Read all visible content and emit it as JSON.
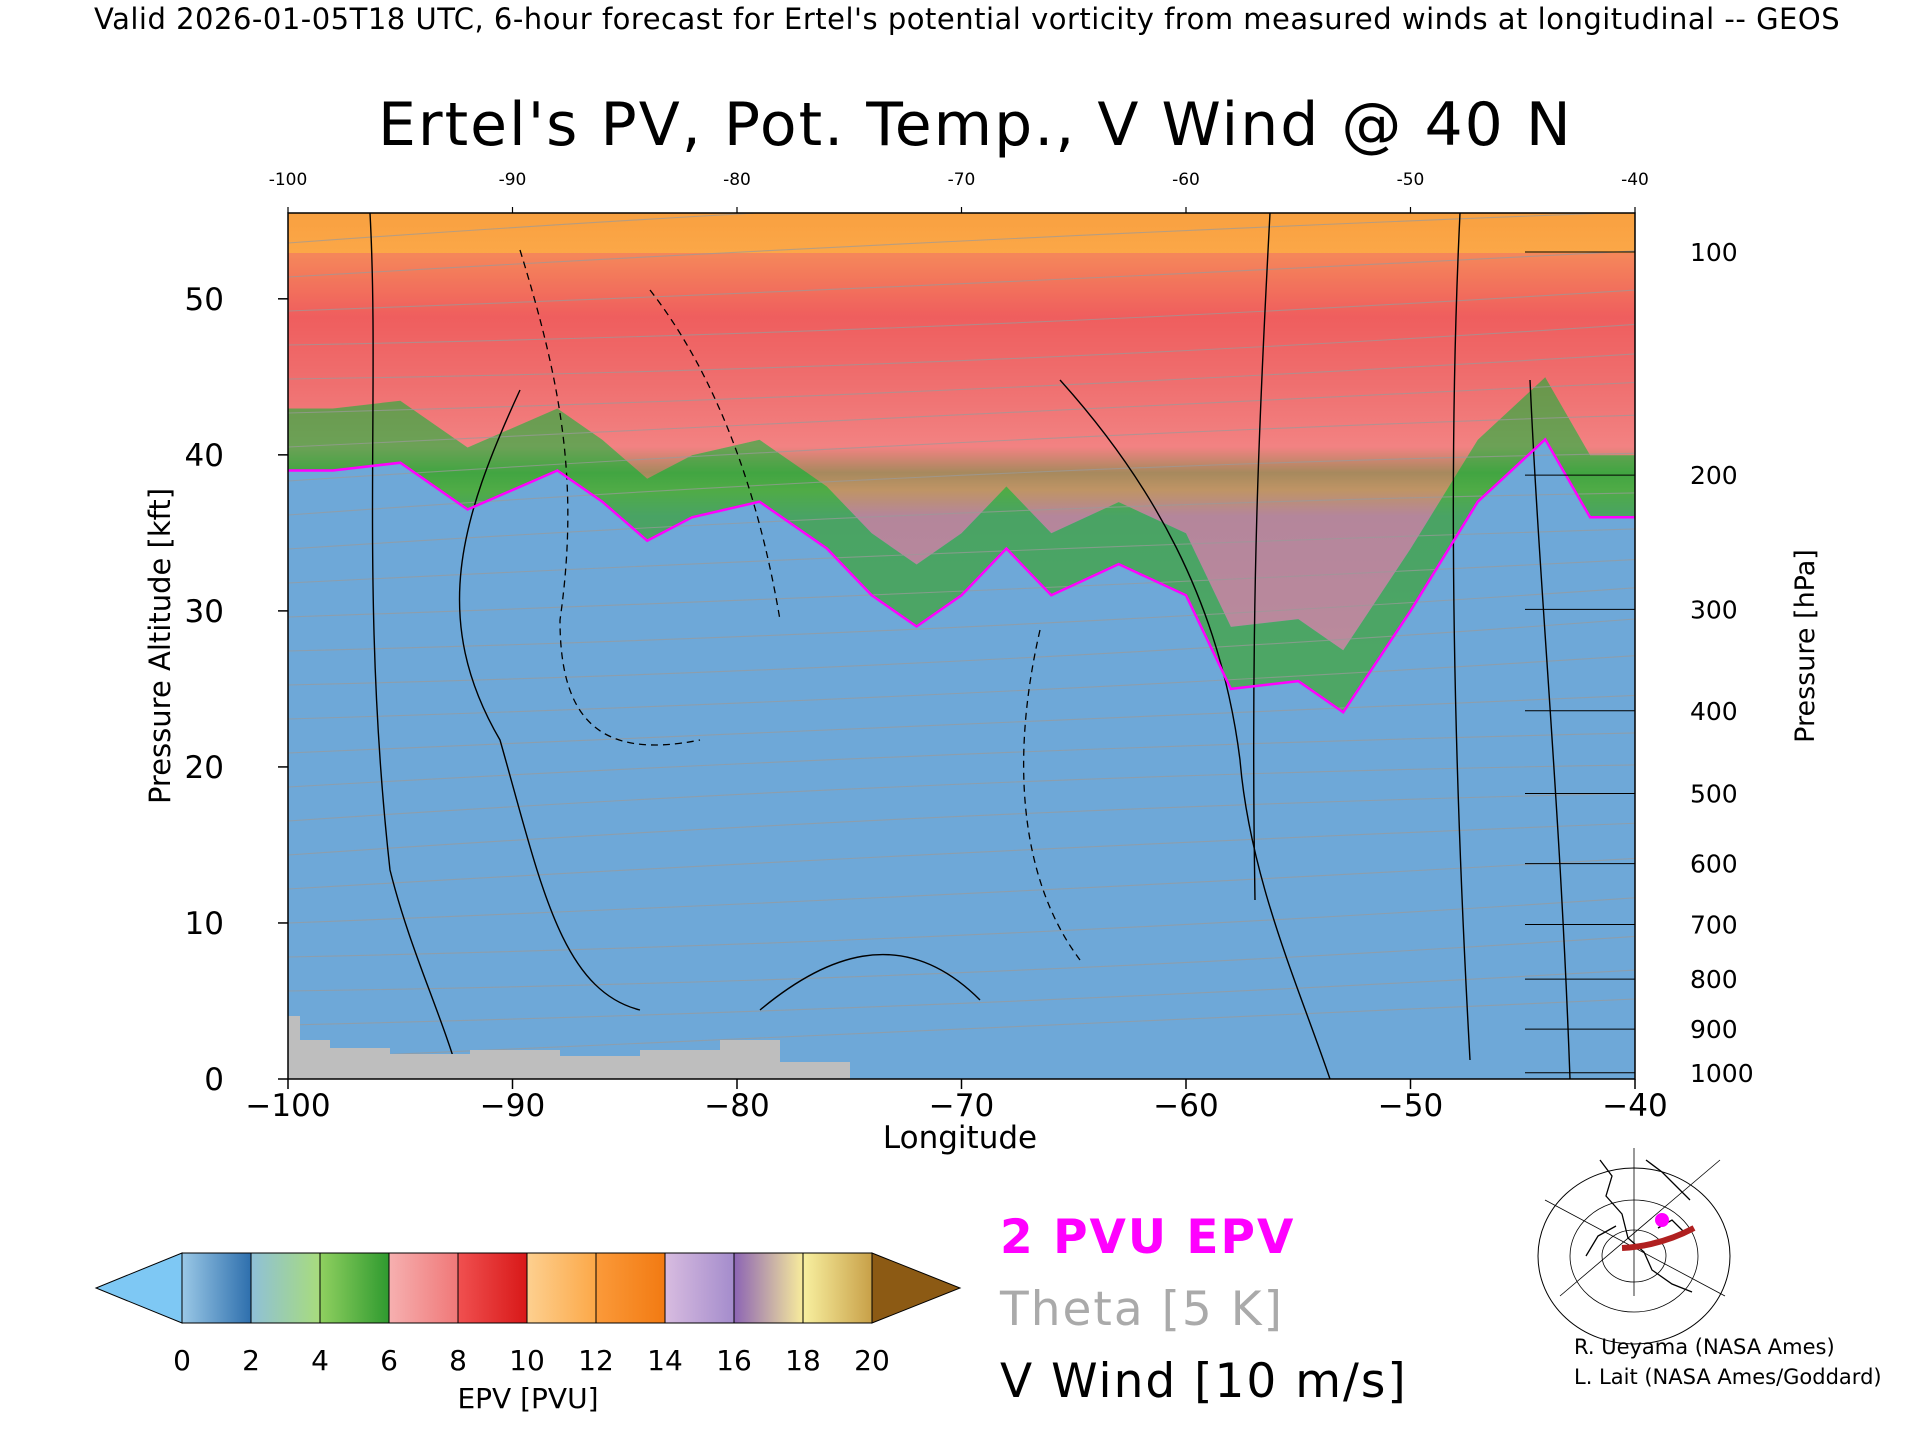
{
  "header": {
    "valid_line": "Valid 2026-01-05T18 UTC, 6-hour forecast for Ertel's potential vorticity from measured winds at longitudinal -- GEOS"
  },
  "chart_data": {
    "type": "heatmap",
    "title": "Ertel's PV, Pot. Temp., V Wind @ 40 N",
    "xlabel": "Longitude",
    "ylabel_left": "Pressure Altitude [kft]",
    "ylabel_right": "Pressure [hPa]",
    "xlim": [
      -100,
      -40
    ],
    "ylim": [
      0,
      55.5
    ],
    "x_ticks": [
      -100,
      -90,
      -80,
      -70,
      -60,
      -50,
      -40
    ],
    "x_tick_labels": [
      "−100",
      "−90",
      "−80",
      "−70",
      "−60",
      "−50",
      "−40"
    ],
    "top_ticks": [
      "-100",
      "-90",
      "-80",
      "-70",
      "-60",
      "-50",
      "-40"
    ],
    "y_ticks": [
      0,
      10,
      20,
      30,
      40,
      50
    ],
    "pressure_ticks": [
      {
        "hPa": "100",
        "kft": 53.0
      },
      {
        "hPa": "200",
        "kft": 38.7
      },
      {
        "hPa": "300",
        "kft": 30.1
      },
      {
        "hPa": "400",
        "kft": 23.6
      },
      {
        "hPa": "500",
        "kft": 18.3
      },
      {
        "hPa": "600",
        "kft": 13.8
      },
      {
        "hPa": "700",
        "kft": 9.9
      },
      {
        "hPa": "800",
        "kft": 6.4
      },
      {
        "hPa": "900",
        "kft": 3.2
      },
      {
        "hPa": "1000",
        "kft": 0.4
      }
    ],
    "tropopause_2pvu_kft": [
      {
        "lon": -100,
        "kft": 39
      },
      {
        "lon": -98,
        "kft": 39
      },
      {
        "lon": -95,
        "kft": 39.5
      },
      {
        "lon": -92,
        "kft": 36.5
      },
      {
        "lon": -88,
        "kft": 39
      },
      {
        "lon": -86,
        "kft": 37
      },
      {
        "lon": -84,
        "kft": 34.5
      },
      {
        "lon": -82,
        "kft": 36
      },
      {
        "lon": -79,
        "kft": 37
      },
      {
        "lon": -76,
        "kft": 34
      },
      {
        "lon": -74,
        "kft": 31
      },
      {
        "lon": -72,
        "kft": 29
      },
      {
        "lon": -70,
        "kft": 31
      },
      {
        "lon": -68,
        "kft": 34
      },
      {
        "lon": -66,
        "kft": 31
      },
      {
        "lon": -63,
        "kft": 33
      },
      {
        "lon": -60,
        "kft": 31
      },
      {
        "lon": -58,
        "kft": 25
      },
      {
        "lon": -55,
        "kft": 25.5
      },
      {
        "lon": -53,
        "kft": 23.5
      },
      {
        "lon": -50,
        "kft": 30
      },
      {
        "lon": -47,
        "kft": 37
      },
      {
        "lon": -44,
        "kft": 41
      },
      {
        "lon": -42,
        "kft": 36
      },
      {
        "lon": -40,
        "kft": 36
      }
    ],
    "colorbar": {
      "label": "EPV [PVU]",
      "ticks": [
        "0",
        "2",
        "4",
        "6",
        "8",
        "10",
        "12",
        "14",
        "16",
        "18",
        "20"
      ],
      "bins": [
        {
          "from": 0,
          "to": 2,
          "colors": [
            "#9ac8e6",
            "#2e6fad"
          ]
        },
        {
          "from": 2,
          "to": 4,
          "colors": [
            "#8fc0d8",
            "#a8dc7c"
          ]
        },
        {
          "from": 4,
          "to": 6,
          "colors": [
            "#90d060",
            "#2f9a2f"
          ]
        },
        {
          "from": 6,
          "to": 8,
          "colors": [
            "#f6b0b0",
            "#f07878"
          ]
        },
        {
          "from": 8,
          "to": 10,
          "colors": [
            "#f05050",
            "#d81818"
          ]
        },
        {
          "from": 10,
          "to": 12,
          "colors": [
            "#fdd090",
            "#fca848"
          ]
        },
        {
          "from": 12,
          "to": 14,
          "colors": [
            "#fb9a3a",
            "#f27a12"
          ]
        },
        {
          "from": 14,
          "to": 16,
          "colors": [
            "#d8bce0",
            "#a48ccc"
          ]
        },
        {
          "from": 16,
          "to": 18,
          "colors": [
            "#8c64b4",
            "#f8ec9c"
          ]
        },
        {
          "from": 18,
          "to": 20,
          "colors": [
            "#f8f0a0",
            "#c8a048"
          ]
        }
      ],
      "under_color": "#7ec8f4",
      "over_color": "#8c5a14"
    }
  },
  "legend": {
    "epv_label": "2 PVU EPV",
    "theta_label": "Theta [5 K]",
    "vwind_label": "V Wind [10 m/s]"
  },
  "credits": {
    "line1": "R. Ueyama (NASA Ames)",
    "line2": "L. Lait (NASA Ames/Goddard)"
  },
  "colors": {
    "tropopause_line": "#ff00ff",
    "theta_contours": "#aaaaaa",
    "wind_contours": "#000000",
    "terrain": "#bebebe",
    "jet_arc": "#b02020"
  }
}
